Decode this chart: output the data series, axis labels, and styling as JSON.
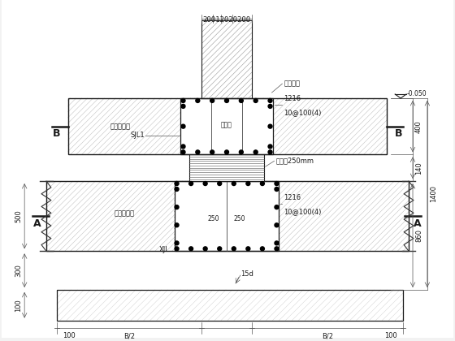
{
  "bg_color": "#f2f2f2",
  "line_color": "#1a1a1a",
  "figsize": [
    5.6,
    4.2
  ],
  "dpi": 100,
  "annotations": {
    "top_dims": "20012020200",
    "right_top_dim": "-0.050",
    "right_400": "400",
    "right_140": "140",
    "right_1400": "1400",
    "right_860": "860",
    "left_500": "500",
    "left_300": "300",
    "left_100": "100",
    "bottom_100L": "100",
    "bottom_B2L": "B/2",
    "bottom_B2R": "B/2",
    "bottom_100R": "100",
    "label_SJL1": "SJL1",
    "label_upper_beam": "上隔震大梁",
    "label_lower_beam": "下隔震大梁",
    "label_XJL": "XJL",
    "label_isolator": "隔震器",
    "label_formwork": "现浇模板",
    "label_pipe": "阶梯管250mm",
    "label_rebar_upper": "1216",
    "label_rebar_upper2": "10@100(4)",
    "label_rebar_lower": "1216",
    "label_rebar_lower2": "10@100(4)",
    "label_250L": "250",
    "label_250R": "250",
    "label_15d": "15d",
    "label_B": "B",
    "label_A": "A"
  }
}
